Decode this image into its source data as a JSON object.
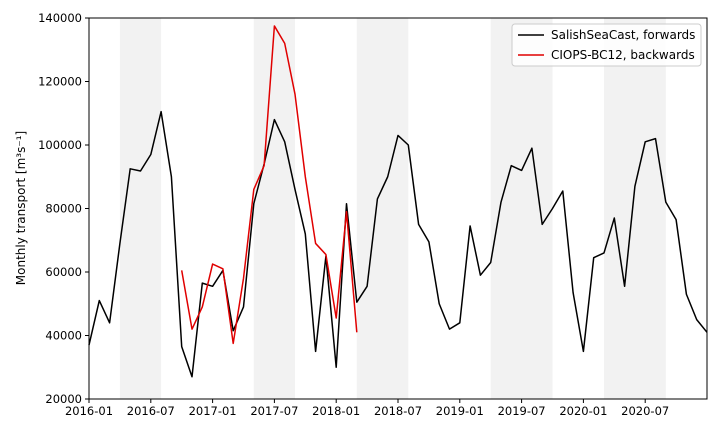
{
  "chart_data": {
    "type": "line",
    "title": "",
    "xlabel": "",
    "ylabel": "Monthly transport",
    "ylabel_units": "[m³s⁻¹]",
    "xlim": [
      "2016-01",
      "2021-01"
    ],
    "ylim": [
      20000,
      140000
    ],
    "yticks": [
      20000,
      40000,
      60000,
      80000,
      100000,
      120000,
      140000
    ],
    "ytick_labels": [
      "20000",
      "40000",
      "60000",
      "80000",
      "100000",
      "120000",
      "140000"
    ],
    "xticks": [
      "2016-01",
      "2016-07",
      "2017-01",
      "2017-07",
      "2018-01",
      "2018-07",
      "2019-01",
      "2019-07",
      "2020-01",
      "2020-07"
    ],
    "xtick_labels": [
      "2016-01",
      "2016-07",
      "2017-01",
      "2017-07",
      "2018-01",
      "2018-07",
      "2019-01",
      "2019-07",
      "2020-01",
      "2020-07"
    ],
    "grid": false,
    "legend": "top-right",
    "shaded_bands": [
      [
        "2016-04",
        "2016-08"
      ],
      [
        "2017-05",
        "2017-09"
      ],
      [
        "2018-03",
        "2018-08"
      ],
      [
        "2019-04",
        "2019-10"
      ],
      [
        "2020-03",
        "2020-09"
      ]
    ],
    "shade_color": "#f2f2f2",
    "series": [
      {
        "name": "SalishSeaCast, forwards",
        "color": "#000000",
        "x": [
          "2016-01",
          "2016-02",
          "2016-03",
          "2016-04",
          "2016-05",
          "2016-06",
          "2016-07",
          "2016-08",
          "2016-09",
          "2016-10",
          "2016-11",
          "2016-12",
          "2017-01",
          "2017-02",
          "2017-03",
          "2017-04",
          "2017-05",
          "2017-06",
          "2017-07",
          "2017-08",
          "2017-09",
          "2017-10",
          "2017-11",
          "2017-12",
          "2018-01",
          "2018-02",
          "2018-03",
          "2018-04",
          "2018-05",
          "2018-06",
          "2018-07",
          "2018-08",
          "2018-09",
          "2018-10",
          "2018-11",
          "2018-12",
          "2019-01",
          "2019-02",
          "2019-03",
          "2019-04",
          "2019-05",
          "2019-06",
          "2019-07",
          "2019-08",
          "2019-09",
          "2019-10",
          "2019-11",
          "2019-12",
          "2020-01",
          "2020-02",
          "2020-03",
          "2020-04",
          "2020-05",
          "2020-06",
          "2020-07",
          "2020-08",
          "2020-09",
          "2020-10",
          "2020-11",
          "2020-12",
          "2021-01"
        ],
        "values": [
          37000,
          51000,
          44000,
          69000,
          92500,
          91800,
          97000,
          110500,
          90000,
          36500,
          27000,
          56500,
          55500,
          60500,
          41500,
          49000,
          81500,
          94000,
          108000,
          101000,
          86000,
          72000,
          35000,
          65000,
          30000,
          81500,
          50500,
          55500,
          83000,
          90000,
          103000,
          100000,
          75000,
          69500,
          50000,
          42000,
          44000,
          74500,
          59000,
          63000,
          82000,
          93500,
          92000,
          99000,
          75000,
          80000,
          85500,
          53500,
          35000,
          64500,
          66000,
          77000,
          55500,
          87000,
          101000,
          102000,
          82000,
          76500,
          53000,
          45000,
          41000
        ]
      },
      {
        "name": "CIOPS-BC12, backwards",
        "color": "#e00000",
        "x": [
          "2016-10",
          "2016-11",
          "2016-12",
          "2017-01",
          "2017-02",
          "2017-03",
          "2017-04",
          "2017-05",
          "2017-06",
          "2017-07",
          "2017-08",
          "2017-09",
          "2017-10",
          "2017-11",
          "2017-12",
          "2018-01",
          "2018-02",
          "2018-03"
        ],
        "values": [
          60500,
          42000,
          49000,
          62500,
          61000,
          37500,
          58000,
          86000,
          93500,
          137500,
          132000,
          116000,
          90000,
          69000,
          65500,
          45500,
          79000,
          41000
        ]
      }
    ]
  }
}
